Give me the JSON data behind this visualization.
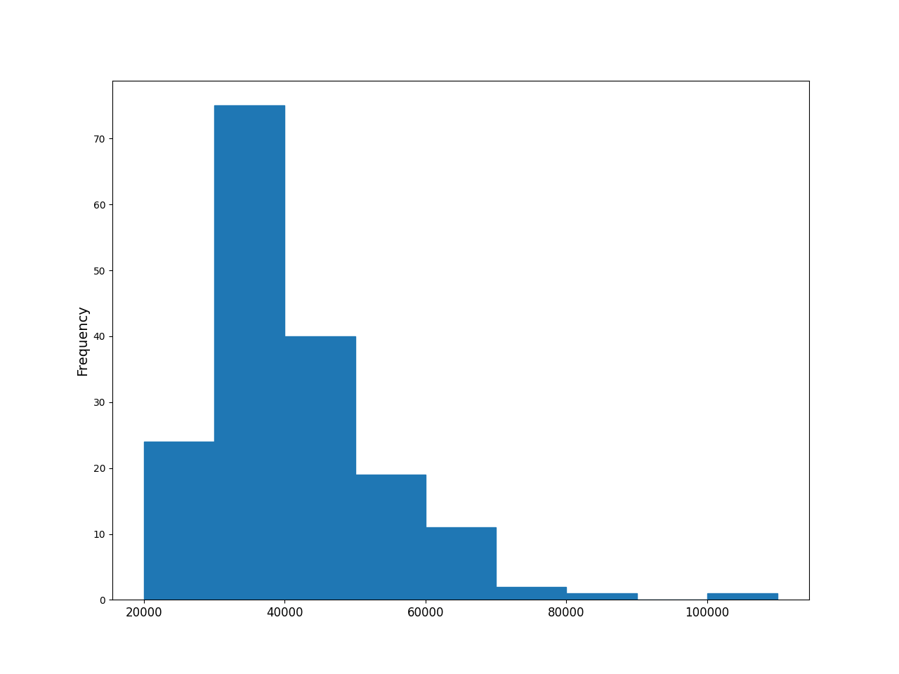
{
  "bin_edges": [
    20000,
    30000,
    40000,
    50000,
    60000,
    70000,
    80000,
    90000,
    100000,
    110000
  ],
  "frequencies": [
    24,
    75,
    40,
    19,
    11,
    2,
    1,
    0,
    1
  ],
  "bar_color": "#1f77b4",
  "bar_edgecolor": "#1f77b4",
  "ylabel": "Frequency",
  "ylabel_fontsize": 14,
  "figsize": [
    12.8,
    9.6
  ],
  "dpi": 100,
  "xticks": [
    20000,
    40000,
    60000,
    80000,
    100000
  ],
  "tick_fontsize": 12
}
